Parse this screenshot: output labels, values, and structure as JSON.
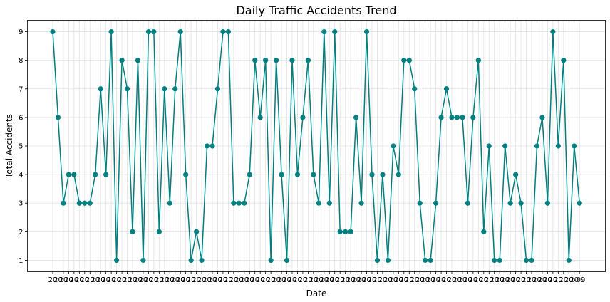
{
  "chart_data": {
    "type": "line",
    "title": "Daily Traffic Accidents Trend",
    "xlabel": "Date",
    "ylabel": "Total Accidents",
    "ylim": [
      0.6,
      9.4
    ],
    "yticks": [
      "1",
      "2",
      "3",
      "4",
      "5",
      "6",
      "7",
      "8",
      "9"
    ],
    "grid": true,
    "color": "#008080",
    "x_tick_labels_visible": [
      "20",
      "20",
      "20",
      "20",
      "20",
      "20",
      "20",
      "20",
      "20",
      "20",
      "20",
      "20",
      "20",
      "20",
      "20",
      "20",
      "20",
      "20",
      "20",
      "20",
      "20",
      "20",
      "20",
      "20",
      "20",
      "20",
      "20",
      "20",
      "20",
      "20",
      "20",
      "20",
      "20",
      "20",
      "20",
      "20",
      "20",
      "20",
      "20",
      "20",
      "20",
      "20",
      "20",
      "20",
      "20",
      "20",
      "20",
      "20",
      "20",
      "20",
      "20",
      "20",
      "20",
      "20",
      "20",
      "20",
      "20",
      "20",
      "20",
      "20",
      "20",
      "20",
      "20",
      "20",
      "20",
      "20",
      "20",
      "20",
      "20",
      "20",
      "20",
      "20",
      "20",
      "20",
      "20",
      "20",
      "20",
      "20",
      "20",
      "20",
      "20",
      "20",
      "20",
      "20",
      "20",
      "20",
      "20",
      "20",
      "20",
      "20",
      "20",
      "20",
      "20",
      "20",
      "20",
      "20",
      "20",
      "20",
      "20",
      "-09"
    ],
    "values": [
      9,
      6,
      3,
      4,
      4,
      3,
      3,
      3,
      4,
      7,
      4,
      9,
      1,
      8,
      7,
      2,
      8,
      1,
      9,
      9,
      2,
      7,
      3,
      7,
      9,
      4,
      1,
      2,
      1,
      5,
      5,
      7,
      9,
      9,
      3,
      3,
      3,
      4,
      8,
      6,
      8,
      1,
      8,
      4,
      1,
      8,
      4,
      6,
      8,
      4,
      3,
      9,
      3,
      9,
      2,
      2,
      2,
      6,
      3,
      9,
      4,
      1,
      4,
      1,
      5,
      4,
      8,
      8,
      7,
      3,
      1,
      1,
      3,
      6,
      7,
      6,
      6,
      6,
      3,
      6,
      8,
      2,
      5,
      1,
      1,
      5,
      3,
      4,
      3,
      1,
      1,
      5,
      6,
      3,
      9,
      5,
      8,
      1,
      5,
      3
    ]
  }
}
